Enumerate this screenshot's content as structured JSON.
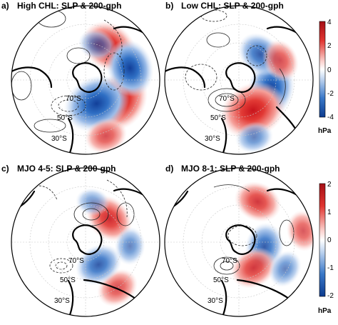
{
  "chart_data": [
    {
      "type": "heatmap",
      "panel_label": "a)",
      "title": "High CHL: SLP & 200-gph",
      "colorbar": {
        "ticks": [
          "4",
          "2",
          "0",
          "-2",
          "-4"
        ],
        "unit": "hPa"
      },
      "lat_labels": [
        "70°S",
        "50°S",
        "30°S"
      ],
      "anomalies": [
        {
          "sign": "pos",
          "lon": 120,
          "r": 0.55,
          "strength": 3.5
        },
        {
          "sign": "pos",
          "lon": 35,
          "r": 0.55,
          "strength": 3
        },
        {
          "sign": "neg",
          "lon": 155,
          "r": 0.35,
          "strength": 4
        },
        {
          "sign": "pos",
          "lon": 160,
          "r": 0.8,
          "strength": 1.5
        },
        {
          "sign": "neg",
          "lon": 75,
          "r": 0.62,
          "strength": 3
        },
        {
          "sign": "neg",
          "lon": 18,
          "r": 0.5,
          "strength": 1
        }
      ]
    },
    {
      "type": "heatmap",
      "panel_label": "b)",
      "title": "Low CHL: SLP & 200-gph",
      "colorbar": {
        "ticks": [
          "4",
          "2",
          "0",
          "-2",
          "-4"
        ],
        "unit": "hPa"
      },
      "lat_labels": [
        "70°S",
        "50°S",
        "30°S"
      ],
      "anomalies": [
        {
          "sign": "neg",
          "lon": 105,
          "r": 0.45,
          "strength": 3
        },
        {
          "sign": "pos",
          "lon": 155,
          "r": 0.45,
          "strength": 4
        },
        {
          "sign": "neg",
          "lon": 40,
          "r": 0.45,
          "strength": 2
        },
        {
          "sign": "pos",
          "lon": 65,
          "r": 0.62,
          "strength": 1.5
        },
        {
          "sign": "neg",
          "lon": 165,
          "r": 0.8,
          "strength": 1
        }
      ]
    },
    {
      "type": "heatmap",
      "panel_label": "c)",
      "title": "MJO 4-5: SLP & 200-gph",
      "colorbar": {
        "ticks": [
          "2",
          "1",
          "0",
          "-1",
          "-2"
        ],
        "unit": "hPa"
      },
      "lat_labels": [
        "70°S",
        "50°S",
        "30°S"
      ],
      "anomalies": [
        {
          "sign": "pos",
          "lon": 45,
          "r": 0.45,
          "strength": 2.3
        },
        {
          "sign": "pos",
          "lon": 145,
          "r": 0.75,
          "strength": 1.5
        },
        {
          "sign": "neg",
          "lon": 150,
          "r": 0.35,
          "strength": 2
        },
        {
          "sign": "neg",
          "lon": 95,
          "r": 0.6,
          "strength": 1
        },
        {
          "sign": "neg",
          "lon": 10,
          "r": 0.55,
          "strength": 0.6
        }
      ]
    },
    {
      "type": "heatmap",
      "panel_label": "d)",
      "title": "MJO 8-1: SLP & 200-gph",
      "colorbar": {
        "ticks": [
          "2",
          "1",
          "0",
          "-1",
          "-2"
        ],
        "unit": "hPa"
      },
      "lat_labels": [
        "70°S",
        "50°S",
        "30°S"
      ],
      "anomalies": [
        {
          "sign": "neg",
          "lon": 100,
          "r": 0.35,
          "strength": 2
        },
        {
          "sign": "pos",
          "lon": 150,
          "r": 0.4,
          "strength": 2
        },
        {
          "sign": "pos",
          "lon": 25,
          "r": 0.6,
          "strength": 2
        },
        {
          "sign": "pos",
          "lon": 80,
          "r": 0.88,
          "strength": 1.3
        },
        {
          "sign": "neg",
          "lon": 120,
          "r": 0.72,
          "strength": 1
        }
      ]
    }
  ]
}
